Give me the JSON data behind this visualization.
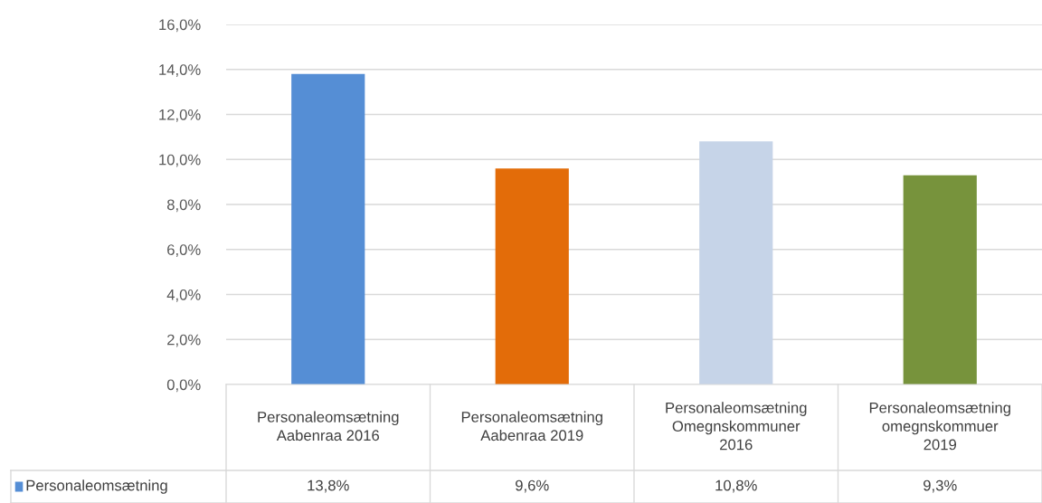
{
  "chart_data": {
    "type": "bar",
    "categories": [
      "Personaleomsætning\nAabenraa 2016",
      "Personaleomsætning\nAabenraa 2019",
      "Personaleomsætning\nOmegnskommuner\n2016",
      "Personaleomsætning\nomegnskommuer\n2019"
    ],
    "series": [
      {
        "name": "Personaleomsætning",
        "color": "#558ed5",
        "colors": [
          "#558ed5",
          "#e36c09",
          "#c6d4e8",
          "#77933c"
        ],
        "values": [
          13.8,
          9.6,
          10.8,
          9.3
        ],
        "value_labels": [
          "13,8%",
          "9,6%",
          "10,8%",
          "9,3%"
        ]
      }
    ],
    "ylim": [
      0,
      16
    ],
    "yticks": [
      {
        "value": 0,
        "label": "0,0%"
      },
      {
        "value": 2,
        "label": "2,0%"
      },
      {
        "value": 4,
        "label": "4,0%"
      },
      {
        "value": 6,
        "label": "6,0%"
      },
      {
        "value": 8,
        "label": "8,0%"
      },
      {
        "value": 10,
        "label": "10,0%"
      },
      {
        "value": 12,
        "label": "12,0%"
      },
      {
        "value": 14,
        "label": "14,0%"
      },
      {
        "value": 16,
        "label": "16,0%"
      }
    ],
    "grid": "y",
    "legend": "bottom"
  }
}
